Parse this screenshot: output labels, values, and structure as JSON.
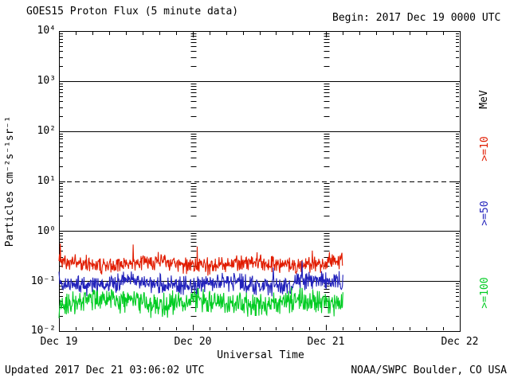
{
  "title": "GOES15 Proton Flux (5 minute data)",
  "begin_label": "Begin: 2017 Dec 19 0000 UTC",
  "footer": {
    "updated": "Updated 2017 Dec 21 03:06:02 UTC",
    "source": "NOAA/SWPC Boulder, CO USA"
  },
  "chart_data": {
    "type": "line",
    "title": "GOES15 Proton Flux (5 minute data)",
    "xlabel": "Universal Time",
    "ylabel": "Particles cm⁻²s⁻¹sr⁻¹",
    "unit_label": "MeV",
    "x_axis": {
      "tick_labels": [
        "Dec 19",
        "Dec 20",
        "Dec 21",
        "Dec 22"
      ],
      "start": "2017 Dec 19 0000 UTC",
      "span_days": 3,
      "minor_tick_hours": 3
    },
    "y_axis": {
      "scale": "log10",
      "range": [
        0.01,
        10000
      ],
      "tick_labels": [
        "10⁴",
        "10³",
        "10²",
        "10¹",
        "10⁰",
        "10⁻¹",
        "10⁻²"
      ],
      "solid_gridlines_at_flux": [
        1000,
        100,
        1,
        0.1
      ],
      "dashed_gridline_at_flux": 10,
      "day_boundary_dash_columns_at_day": [
        1,
        2
      ]
    },
    "cadence_minutes": 5,
    "data_end_day": 2.125,
    "series": [
      {
        "name": ">=10",
        "color": "#e11c00",
        "log10_mean": -0.66,
        "log10_spread": 0.13,
        "spike_prob": 0.02,
        "spike_log10": 0.3,
        "typical_flux": 0.22,
        "peak_flux": 0.5,
        "seed": 1101
      },
      {
        "name": ">=50",
        "color": "#2222bb",
        "log10_mean": -1.05,
        "log10_spread": 0.14,
        "spike_prob": 0.015,
        "spike_log10": 0.28,
        "typical_flux": 0.09,
        "peak_flux": 0.2,
        "seed": 2202
      },
      {
        "name": ">=100",
        "color": "#00cc22",
        "log10_mean": -1.42,
        "log10_spread": 0.18,
        "spike_prob": 0.02,
        "spike_log10": 0.3,
        "typical_flux": 0.04,
        "peak_flux": 0.1,
        "seed": 3303
      }
    ]
  }
}
